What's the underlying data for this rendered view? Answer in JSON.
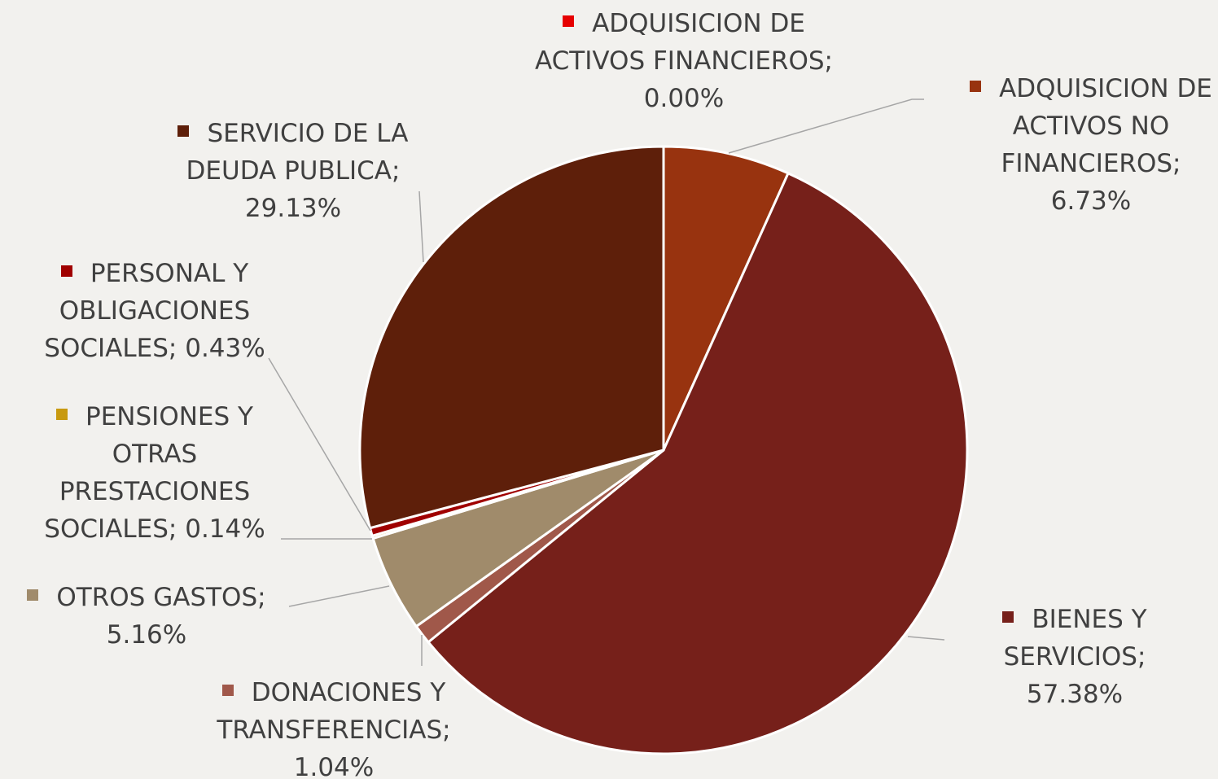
{
  "chart_data": {
    "type": "pie",
    "categories": [
      "ADQUISICION DE ACTIVOS FINANCIEROS",
      "ADQUISICION DE ACTIVOS NO FINANCIEROS",
      "BIENES Y SERVICIOS",
      "DONACIONES Y TRANSFERENCIAS",
      "OTROS GASTOS",
      "PENSIONES Y OTRAS PRESTACIONES SOCIALES",
      "PERSONAL Y OBLIGACIONES SOCIALES",
      "SERVICIO DE LA DEUDA PUBLICA"
    ],
    "values": [
      0.0,
      6.73,
      57.38,
      1.04,
      5.16,
      0.14,
      0.43,
      29.13
    ],
    "value_labels": [
      "0.00%",
      "6.73%",
      "57.38%",
      "1.04%",
      "5.16%",
      "0.14%",
      "0.43%",
      "29.13%"
    ],
    "label_separator": ";",
    "colors": [
      "#e60000",
      "#98330f",
      "#76201a",
      "#a0584a",
      "#a08b6b",
      "#c89a10",
      "#a00000",
      "#5e1f0a"
    ]
  }
}
